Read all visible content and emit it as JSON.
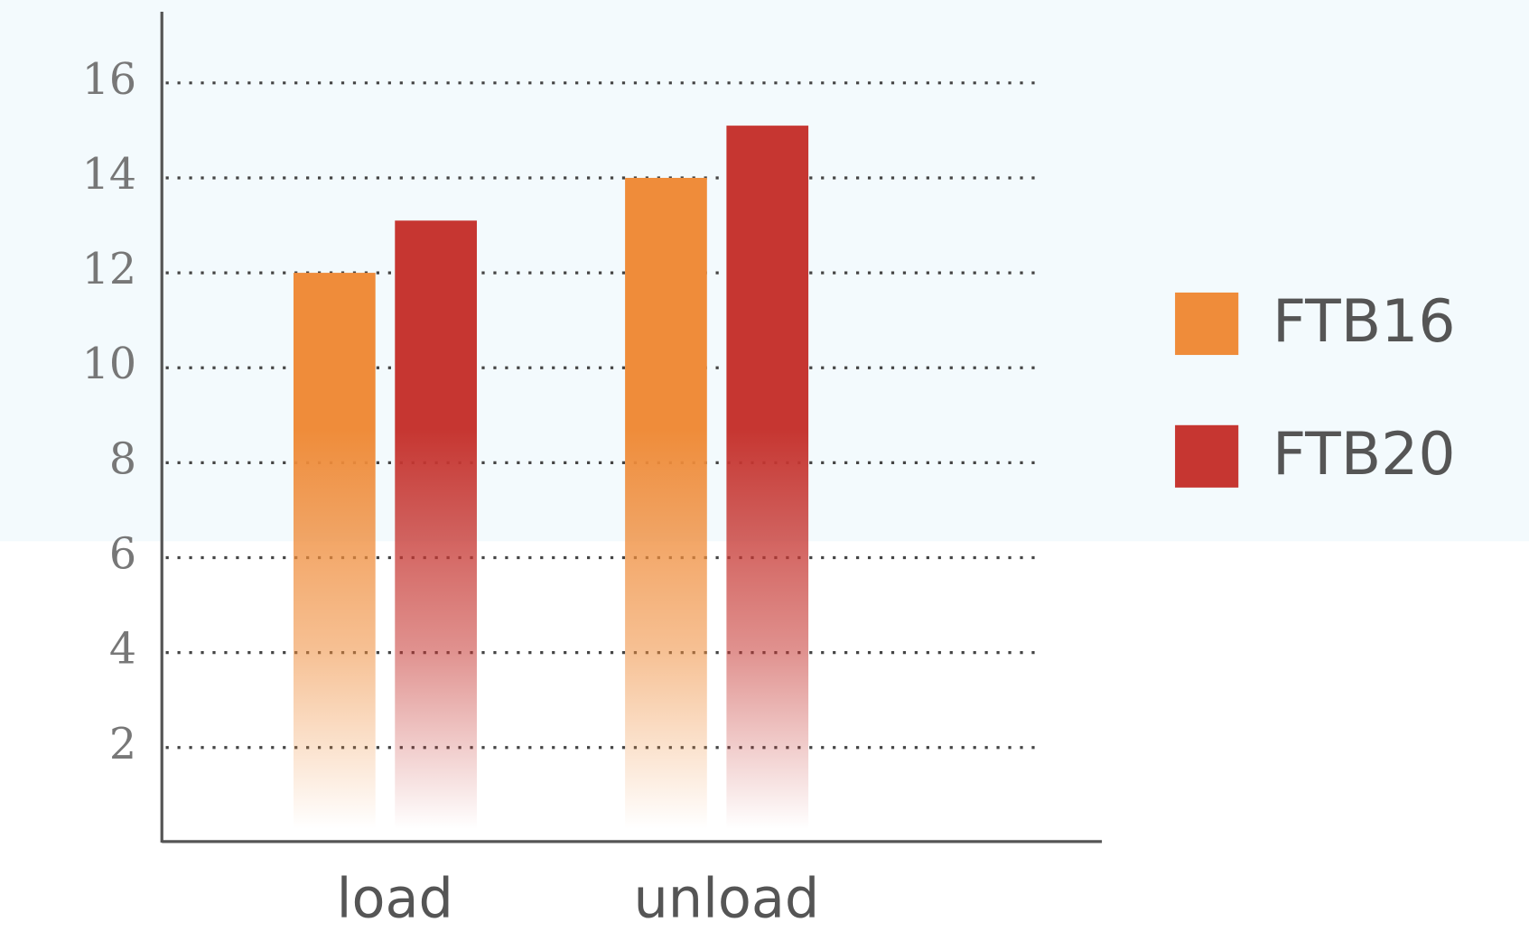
{
  "chart_data": {
    "type": "bar",
    "categories": [
      "load",
      "unload"
    ],
    "series": [
      {
        "name": "FTB16",
        "color": "#ef8c3a",
        "values": [
          12,
          14
        ]
      },
      {
        "name": "FTB20",
        "color": "#c63631",
        "values": [
          13.1,
          15.1
        ]
      }
    ],
    "ylim": [
      0,
      17.5
    ],
    "yticks": [
      2,
      4,
      6,
      8,
      10,
      12,
      14,
      16
    ],
    "grid": true,
    "legend": "right"
  }
}
